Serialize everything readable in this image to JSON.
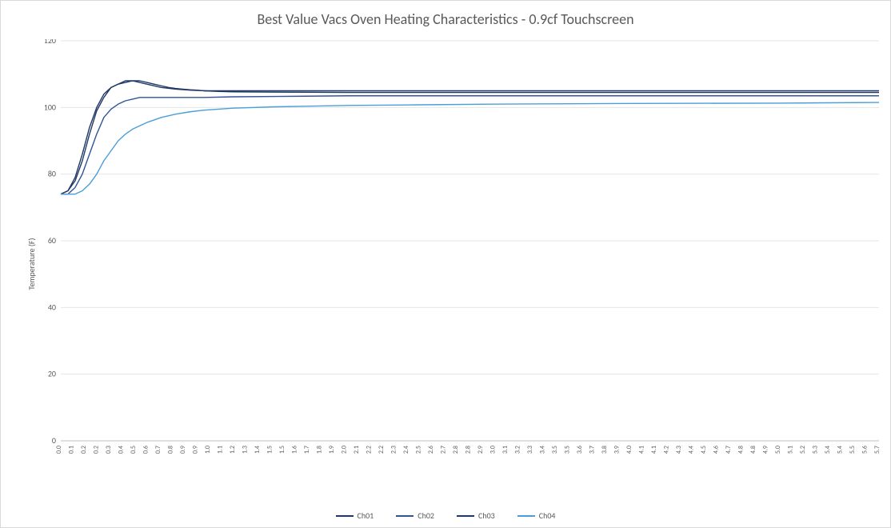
{
  "chart": {
    "type": "line",
    "title": "Best Value Vacs Oven Heating Characteristics - 0.9cf Touchscreen",
    "title_fontsize": 18,
    "title_color": "#595959",
    "ylabel": "Temperature (F)",
    "ylabel_fontsize": 10,
    "background_color": "#ffffff",
    "plot_border_color": "#d9d9d9",
    "grid_color": "#e6e6e6",
    "axis_color": "#bfbfbf",
    "tick_label_color": "#595959",
    "ylim": [
      0,
      120
    ],
    "ytick_step": 20,
    "yticks": [
      0,
      20,
      40,
      60,
      80,
      100,
      120
    ],
    "xlim": [
      0.0,
      5.7
    ],
    "xtick_step": 0.1,
    "xticks": [
      0.0,
      0.1,
      0.2,
      0.2,
      0.3,
      0.4,
      0.5,
      0.6,
      0.7,
      0.8,
      0.9,
      0.9,
      1.0,
      1.1,
      1.2,
      1.3,
      1.4,
      1.5,
      1.5,
      1.6,
      1.7,
      1.8,
      1.9,
      2.0,
      2.1,
      2.2,
      2.2,
      2.3,
      2.4,
      2.5,
      2.6,
      2.7,
      2.8,
      2.8,
      2.9,
      3.0,
      3.1,
      3.2,
      3.3,
      3.4,
      3.5,
      3.5,
      3.6,
      3.7,
      3.8,
      3.9,
      4.0,
      4.1,
      4.1,
      4.2,
      4.3,
      4.4,
      4.5,
      4.6,
      4.7,
      4.8,
      4.8,
      4.9,
      5.0,
      5.1,
      5.2,
      5.3,
      5.4,
      5.4,
      5.5,
      5.6,
      5.7
    ],
    "x_tick_rotation": -90,
    "x_tick_fontsize": 8,
    "y_tick_fontsize": 10,
    "line_width": 1.4,
    "series": [
      {
        "name": "Ch01",
        "color": "#1f3864",
        "x": [
          0.0,
          0.05,
          0.1,
          0.15,
          0.2,
          0.25,
          0.3,
          0.35,
          0.4,
          0.45,
          0.5,
          0.55,
          0.6,
          0.65,
          0.7,
          0.75,
          0.8,
          0.85,
          0.9,
          0.95,
          1.0,
          1.1,
          1.2,
          1.5,
          2.0,
          3.0,
          4.0,
          5.0,
          5.7
        ],
        "y": [
          74,
          75,
          78,
          84,
          92,
          99,
          103,
          106,
          107,
          108,
          108,
          108,
          107.5,
          107,
          106.5,
          106,
          105.7,
          105.5,
          105.3,
          105.2,
          105,
          105,
          105,
          105,
          105,
          105,
          105,
          105,
          105
        ]
      },
      {
        "name": "Ch02",
        "color": "#2f5597",
        "x": [
          0.0,
          0.05,
          0.1,
          0.15,
          0.2,
          0.25,
          0.3,
          0.35,
          0.4,
          0.45,
          0.5,
          0.55,
          0.6,
          0.7,
          0.8,
          0.9,
          1.0,
          1.2,
          1.5,
          2.0,
          3.0,
          4.0,
          5.0,
          5.7
        ],
        "y": [
          74,
          74,
          76,
          80,
          86,
          92,
          97,
          99.5,
          101,
          102,
          102.5,
          103,
          103,
          103,
          103,
          103,
          103,
          103.2,
          103.3,
          103.5,
          103.5,
          103.5,
          103.5,
          103.5
        ]
      },
      {
        "name": "Ch03",
        "color": "#203864",
        "x": [
          0.0,
          0.05,
          0.1,
          0.15,
          0.2,
          0.25,
          0.3,
          0.35,
          0.4,
          0.45,
          0.5,
          0.55,
          0.6,
          0.7,
          0.8,
          0.9,
          1.0,
          1.1,
          1.2,
          1.5,
          2.0,
          3.0,
          4.0,
          5.0,
          5.7
        ],
        "y": [
          74,
          75,
          79,
          86,
          94,
          100,
          104,
          106,
          107,
          107.5,
          108,
          107.5,
          107,
          106,
          105.5,
          105.2,
          105,
          104.8,
          104.7,
          104.6,
          104.5,
          104.5,
          104.5,
          104.5,
          104.5
        ]
      },
      {
        "name": "Ch04",
        "color": "#4a9eda",
        "x": [
          0.0,
          0.05,
          0.1,
          0.15,
          0.2,
          0.25,
          0.3,
          0.35,
          0.4,
          0.45,
          0.5,
          0.55,
          0.6,
          0.7,
          0.8,
          0.9,
          1.0,
          1.2,
          1.5,
          2.0,
          2.5,
          3.0,
          4.0,
          5.0,
          5.7
        ],
        "y": [
          74,
          74,
          74,
          75,
          77,
          80,
          84,
          87,
          90,
          92,
          93.5,
          94.5,
          95.5,
          97,
          98,
          98.7,
          99.2,
          99.8,
          100.2,
          100.6,
          100.8,
          101,
          101.2,
          101.3,
          101.5
        ]
      }
    ],
    "legend": {
      "position": "bottom",
      "items": [
        "Ch01",
        "Ch02",
        "Ch03",
        "Ch04"
      ],
      "fontsize": 10
    }
  }
}
